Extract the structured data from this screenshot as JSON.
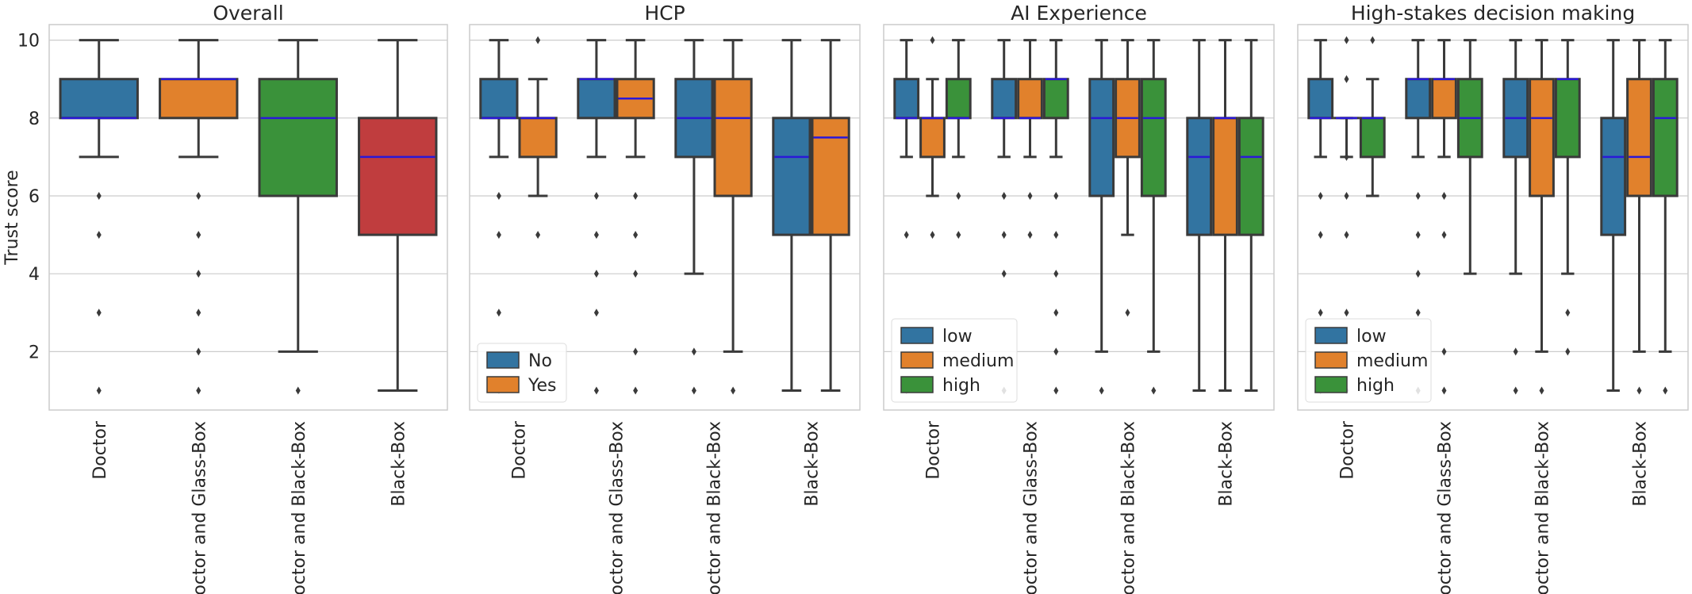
{
  "figure": {
    "ylabel": "Trust score",
    "ylim": [
      0.5,
      10.4
    ],
    "yticks": [
      2,
      4,
      6,
      8,
      10
    ],
    "categories": [
      "Doctor",
      "Doctor and Glass-Box",
      "Doctor and Black-Box",
      "Black-Box"
    ],
    "grid": true,
    "median_color": "#2a18d8"
  },
  "colors": {
    "blue": "#3274a1",
    "orange": "#e1812c",
    "green": "#3a923a",
    "red": "#c03d3e",
    "box_edge": "#3a3a3a",
    "grid": "#cccccc",
    "axes_edge": "#cccccc",
    "text": "#262626"
  },
  "chart_data": [
    {
      "type": "box",
      "title": "Overall",
      "categories": [
        "Doctor",
        "Doctor and Glass-Box",
        "Doctor and Black-Box",
        "Black-Box"
      ],
      "legend": null,
      "series": [
        {
          "name": "",
          "color": "#3274a1",
          "boxes": [
            {
              "category": "Doctor",
              "whisker_low": 7,
              "q1": 8,
              "median": 8,
              "q3": 9,
              "whisker_high": 10,
              "outliers": [
                6,
                5,
                3,
                1
              ],
              "color": "#3274a1"
            },
            {
              "category": "Doctor and Glass-Box",
              "whisker_low": 7,
              "q1": 8,
              "median": 9,
              "q3": 9,
              "whisker_high": 10,
              "outliers": [
                6,
                5,
                4,
                3,
                2,
                1
              ],
              "color": "#e1812c"
            },
            {
              "category": "Doctor and Black-Box",
              "whisker_low": 2,
              "q1": 6,
              "median": 8,
              "q3": 9,
              "whisker_high": 10,
              "outliers": [
                1
              ],
              "color": "#3a923a"
            },
            {
              "category": "Black-Box",
              "whisker_low": 1,
              "q1": 5,
              "median": 7,
              "q3": 8,
              "whisker_high": 10,
              "outliers": [],
              "color": "#c03d3e"
            }
          ]
        }
      ]
    },
    {
      "type": "box",
      "title": "HCP",
      "categories": [
        "Doctor",
        "Doctor and Glass-Box",
        "Doctor and Black-Box",
        "Black-Box"
      ],
      "legend": {
        "position": "lower left"
      },
      "series": [
        {
          "name": "No",
          "color": "#3274a1",
          "boxes": [
            {
              "category": "Doctor",
              "whisker_low": 7,
              "q1": 8,
              "median": 8,
              "q3": 9,
              "whisker_high": 10,
              "outliers": [
                6,
                5,
                3,
                1
              ]
            },
            {
              "category": "Doctor and Glass-Box",
              "whisker_low": 7,
              "q1": 8,
              "median": 9,
              "q3": 9,
              "whisker_high": 10,
              "outliers": [
                6,
                5,
                4,
                3,
                1
              ]
            },
            {
              "category": "Doctor and Black-Box",
              "whisker_low": 4,
              "q1": 7,
              "median": 8,
              "q3": 9,
              "whisker_high": 10,
              "outliers": [
                2,
                1
              ]
            },
            {
              "category": "Black-Box",
              "whisker_low": 1,
              "q1": 5,
              "median": 7,
              "q3": 8,
              "whisker_high": 10,
              "outliers": []
            }
          ]
        },
        {
          "name": "Yes",
          "color": "#e1812c",
          "boxes": [
            {
              "category": "Doctor",
              "whisker_low": 6,
              "q1": 7,
              "median": 8,
              "q3": 8,
              "whisker_high": 9,
              "outliers": [
                10,
                5
              ]
            },
            {
              "category": "Doctor and Glass-Box",
              "whisker_low": 7,
              "q1": 8,
              "median": 8.5,
              "q3": 9,
              "whisker_high": 10,
              "outliers": [
                6,
                5,
                4,
                2,
                1
              ]
            },
            {
              "category": "Doctor and Black-Box",
              "whisker_low": 2,
              "q1": 6,
              "median": 8,
              "q3": 9,
              "whisker_high": 10,
              "outliers": [
                1
              ]
            },
            {
              "category": "Black-Box",
              "whisker_low": 1,
              "q1": 5,
              "median": 7.5,
              "q3": 8,
              "whisker_high": 10,
              "outliers": []
            }
          ]
        }
      ]
    },
    {
      "type": "box",
      "title": "AI Experience",
      "categories": [
        "Doctor",
        "Doctor and Glass-Box",
        "Doctor and Black-Box",
        "Black-Box"
      ],
      "legend": {
        "position": "lower left"
      },
      "series": [
        {
          "name": "low",
          "color": "#3274a1",
          "boxes": [
            {
              "category": "Doctor",
              "whisker_low": 7,
              "q1": 8,
              "median": 8,
              "q3": 9,
              "whisker_high": 10,
              "outliers": [
                5,
                1
              ]
            },
            {
              "category": "Doctor and Glass-Box",
              "whisker_low": 7,
              "q1": 8,
              "median": 8,
              "q3": 9,
              "whisker_high": 10,
              "outliers": [
                6,
                5,
                4,
                1
              ]
            },
            {
              "category": "Doctor and Black-Box",
              "whisker_low": 2,
              "q1": 6,
              "median": 8,
              "q3": 9,
              "whisker_high": 10,
              "outliers": [
                1
              ]
            },
            {
              "category": "Black-Box",
              "whisker_low": 1,
              "q1": 5,
              "median": 7,
              "q3": 8,
              "whisker_high": 10,
              "outliers": []
            }
          ]
        },
        {
          "name": "medium",
          "color": "#e1812c",
          "boxes": [
            {
              "category": "Doctor",
              "whisker_low": 6,
              "q1": 7,
              "median": 8,
              "q3": 8,
              "whisker_high": 9,
              "outliers": [
                10,
                5
              ]
            },
            {
              "category": "Doctor and Glass-Box",
              "whisker_low": 7,
              "q1": 8,
              "median": 8,
              "q3": 9,
              "whisker_high": 10,
              "outliers": [
                6,
                5
              ]
            },
            {
              "category": "Doctor and Black-Box",
              "whisker_low": 5,
              "q1": 7,
              "median": 8,
              "q3": 9,
              "whisker_high": 10,
              "outliers": [
                3
              ]
            },
            {
              "category": "Black-Box",
              "whisker_low": 1,
              "q1": 5,
              "median": 8,
              "q3": 8,
              "whisker_high": 10,
              "outliers": []
            }
          ]
        },
        {
          "name": "high",
          "color": "#3a923a",
          "boxes": [
            {
              "category": "Doctor",
              "whisker_low": 7,
              "q1": 8,
              "median": 8,
              "q3": 9,
              "whisker_high": 10,
              "outliers": [
                6,
                5
              ]
            },
            {
              "category": "Doctor and Glass-Box",
              "whisker_low": 7,
              "q1": 8,
              "median": 9,
              "q3": 9,
              "whisker_high": 10,
              "outliers": [
                6,
                5,
                4,
                3,
                2,
                1
              ]
            },
            {
              "category": "Doctor and Black-Box",
              "whisker_low": 2,
              "q1": 6,
              "median": 8,
              "q3": 9,
              "whisker_high": 10,
              "outliers": [
                1
              ]
            },
            {
              "category": "Black-Box",
              "whisker_low": 1,
              "q1": 5,
              "median": 7,
              "q3": 8,
              "whisker_high": 10,
              "outliers": []
            }
          ]
        }
      ]
    },
    {
      "type": "box",
      "title": "High-stakes decision making",
      "categories": [
        "Doctor",
        "Doctor and Glass-Box",
        "Doctor and Black-Box",
        "Black-Box"
      ],
      "legend": {
        "position": "lower left"
      },
      "series": [
        {
          "name": "low",
          "color": "#3274a1",
          "boxes": [
            {
              "category": "Doctor",
              "whisker_low": 7,
              "q1": 8,
              "median": 8,
              "q3": 9,
              "whisker_high": 10,
              "outliers": [
                6,
                5,
                3,
                1
              ]
            },
            {
              "category": "Doctor and Glass-Box",
              "whisker_low": 7,
              "q1": 8,
              "median": 9,
              "q3": 9,
              "whisker_high": 10,
              "outliers": [
                6,
                5,
                4,
                3,
                1
              ]
            },
            {
              "category": "Doctor and Black-Box",
              "whisker_low": 4,
              "q1": 7,
              "median": 8,
              "q3": 9,
              "whisker_high": 10,
              "outliers": [
                2,
                1
              ]
            },
            {
              "category": "Black-Box",
              "whisker_low": 1,
              "q1": 5,
              "median": 7,
              "q3": 8,
              "whisker_high": 10,
              "outliers": []
            }
          ]
        },
        {
          "name": "medium",
          "color": "#e1812c",
          "boxes": [
            {
              "category": "Doctor",
              "whisker_low": 7,
              "q1": 8,
              "median": 8,
              "q3": 8,
              "whisker_high": 8,
              "outliers": [
                10,
                9,
                7,
                6,
                5,
                3,
                1
              ]
            },
            {
              "category": "Doctor and Glass-Box",
              "whisker_low": 7,
              "q1": 8,
              "median": 9,
              "q3": 9,
              "whisker_high": 10,
              "outliers": [
                6,
                5,
                2,
                1
              ]
            },
            {
              "category": "Doctor and Black-Box",
              "whisker_low": 2,
              "q1": 6,
              "median": 8,
              "q3": 9,
              "whisker_high": 10,
              "outliers": [
                1
              ]
            },
            {
              "category": "Black-Box",
              "whisker_low": 2,
              "q1": 6,
              "median": 7,
              "q3": 9,
              "whisker_high": 10,
              "outliers": [
                1
              ]
            }
          ]
        },
        {
          "name": "high",
          "color": "#3a923a",
          "boxes": [
            {
              "category": "Doctor",
              "whisker_low": 6,
              "q1": 7,
              "median": 8,
              "q3": 8,
              "whisker_high": 9,
              "outliers": [
                10
              ]
            },
            {
              "category": "Doctor and Glass-Box",
              "whisker_low": 4,
              "q1": 7,
              "median": 8,
              "q3": 9,
              "whisker_high": 10,
              "outliers": []
            },
            {
              "category": "Doctor and Black-Box",
              "whisker_low": 4,
              "q1": 7,
              "median": 9,
              "q3": 9,
              "whisker_high": 10,
              "outliers": [
                3,
                2
              ]
            },
            {
              "category": "Black-Box",
              "whisker_low": 2,
              "q1": 6,
              "median": 8,
              "q3": 9,
              "whisker_high": 10,
              "outliers": [
                1
              ]
            }
          ]
        }
      ]
    }
  ]
}
